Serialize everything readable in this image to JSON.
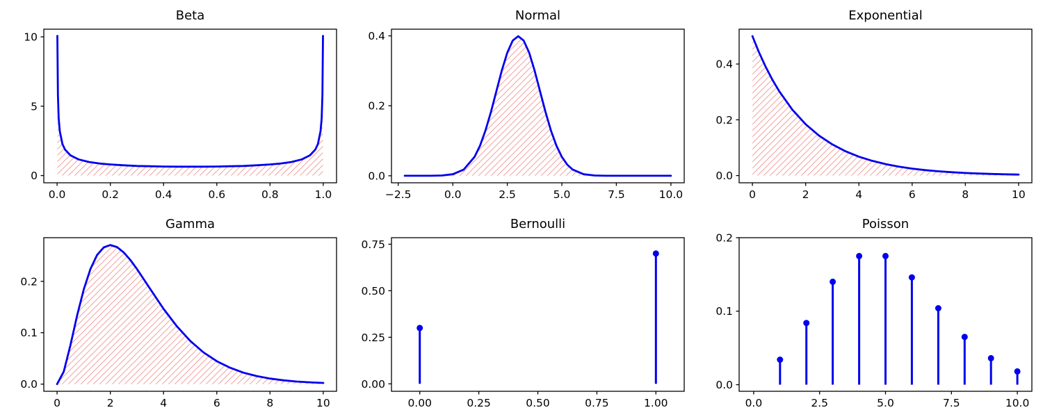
{
  "figure": {
    "rows": 2,
    "cols": 3,
    "background": "#ffffff",
    "colors": {
      "line": "#0000ee",
      "hatch": "#f3a29f",
      "axis": "#000000",
      "text": "#000000"
    }
  },
  "chart_data": [
    {
      "type": "line",
      "title": "Beta",
      "fill": "hatch",
      "xlim": [
        -0.05,
        1.05
      ],
      "ylim": [
        -0.52,
        10.55
      ],
      "xticks": [
        0,
        0.2,
        0.4,
        0.6,
        0.8,
        1.0
      ],
      "xtick_labels": [
        "0.0",
        "0.2",
        "0.4",
        "0.6",
        "0.8",
        "1.0"
      ],
      "yticks": [
        0,
        5,
        10
      ],
      "ytick_labels": [
        "0",
        "5",
        "10"
      ],
      "x": [
        0.001,
        0.003,
        0.006,
        0.01,
        0.02,
        0.03,
        0.05,
        0.08,
        0.12,
        0.16,
        0.2,
        0.25,
        0.3,
        0.35,
        0.4,
        0.45,
        0.5,
        0.55,
        0.6,
        0.65,
        0.7,
        0.75,
        0.8,
        0.84,
        0.88,
        0.92,
        0.95,
        0.97,
        0.98,
        0.99,
        0.994,
        0.997,
        0.999
      ],
      "y": [
        10.07,
        5.82,
        4.12,
        3.2,
        2.27,
        1.87,
        1.46,
        1.17,
        0.98,
        0.87,
        0.8,
        0.74,
        0.69,
        0.67,
        0.65,
        0.64,
        0.64,
        0.64,
        0.65,
        0.67,
        0.69,
        0.74,
        0.8,
        0.87,
        0.98,
        1.17,
        1.46,
        1.87,
        2.27,
        3.2,
        4.12,
        5.82,
        10.07
      ]
    },
    {
      "type": "line",
      "title": "Normal",
      "fill": "hatch",
      "xlim": [
        -2.81,
        10.61
      ],
      "ylim": [
        -0.02,
        0.419
      ],
      "xticks": [
        -2.5,
        0,
        2.5,
        5,
        7.5,
        10
      ],
      "xtick_labels": [
        "−2.5",
        "0.0",
        "2.5",
        "5.0",
        "7.5",
        "10.0"
      ],
      "yticks": [
        0,
        0.2,
        0.4
      ],
      "ytick_labels": [
        "0.0",
        "0.2",
        "0.4"
      ],
      "x": [
        -2.2,
        -1.5,
        -1,
        -0.5,
        0,
        0.5,
        1,
        1.25,
        1.5,
        1.75,
        2,
        2.25,
        2.5,
        2.75,
        3,
        3.25,
        3.5,
        3.75,
        4,
        4.25,
        4.5,
        4.75,
        5,
        5.25,
        5.5,
        6,
        6.5,
        7,
        7.5,
        8,
        9,
        10
      ],
      "y": [
        0,
        0,
        0.0001,
        0.0009,
        0.0044,
        0.0175,
        0.054,
        0.0862,
        0.1295,
        0.1826,
        0.242,
        0.3011,
        0.3521,
        0.3866,
        0.3989,
        0.3866,
        0.3521,
        0.3011,
        0.242,
        0.1826,
        0.1295,
        0.0862,
        0.054,
        0.0317,
        0.0175,
        0.0044,
        0.0009,
        0.0001,
        0,
        0,
        0,
        0
      ]
    },
    {
      "type": "line",
      "title": "Exponential",
      "fill": "hatch",
      "xlim": [
        -0.5,
        10.5
      ],
      "ylim": [
        -0.026,
        0.525
      ],
      "xticks": [
        0,
        2,
        4,
        6,
        8,
        10
      ],
      "xtick_labels": [
        "0",
        "2",
        "4",
        "6",
        "8",
        "10"
      ],
      "yticks": [
        0,
        0.2,
        0.4
      ],
      "ytick_labels": [
        "0.0",
        "0.2",
        "0.4"
      ],
      "x": [
        0,
        0.25,
        0.5,
        0.75,
        1,
        1.5,
        2,
        2.5,
        3,
        3.5,
        4,
        4.5,
        5,
        5.5,
        6,
        6.5,
        7,
        7.5,
        8,
        8.5,
        9,
        9.5,
        10
      ],
      "y": [
        0.5,
        0.4412,
        0.3894,
        0.3437,
        0.3033,
        0.2362,
        0.1839,
        0.1432,
        0.1116,
        0.0869,
        0.0677,
        0.0527,
        0.041,
        0.032,
        0.0249,
        0.0194,
        0.0151,
        0.0118,
        0.0092,
        0.0071,
        0.0056,
        0.0043,
        0.0034
      ]
    },
    {
      "type": "line",
      "title": "Gamma",
      "fill": "hatch",
      "xlim": [
        -0.5,
        10.5
      ],
      "ylim": [
        -0.014,
        0.285
      ],
      "xticks": [
        0,
        2,
        4,
        6,
        8,
        10
      ],
      "xtick_labels": [
        "0",
        "2",
        "4",
        "6",
        "8",
        "10"
      ],
      "yticks": [
        0,
        0.1,
        0.2
      ],
      "ytick_labels": [
        "0.0",
        "0.1",
        "0.2"
      ],
      "x": [
        0,
        0.25,
        0.5,
        0.75,
        1,
        1.25,
        1.5,
        1.75,
        2,
        2.25,
        2.5,
        2.75,
        3,
        3.5,
        4,
        4.5,
        5,
        5.5,
        6,
        6.5,
        7,
        7.5,
        8,
        8.5,
        9,
        9.5,
        10
      ],
      "y": [
        0,
        0.0243,
        0.0758,
        0.1329,
        0.1839,
        0.2238,
        0.251,
        0.2661,
        0.2707,
        0.2668,
        0.2565,
        0.2417,
        0.224,
        0.185,
        0.1465,
        0.1125,
        0.0842,
        0.0618,
        0.0446,
        0.0318,
        0.0223,
        0.0156,
        0.0107,
        0.0074,
        0.005,
        0.0034,
        0.0023
      ]
    },
    {
      "type": "stem",
      "title": "Bernoulli",
      "xlim": [
        -0.12,
        1.12
      ],
      "ylim": [
        -0.04,
        0.785
      ],
      "xticks": [
        0,
        0.25,
        0.5,
        0.75,
        1
      ],
      "xtick_labels": [
        "0.00",
        "0.25",
        "0.50",
        "0.75",
        "1.00"
      ],
      "yticks": [
        0,
        0.25,
        0.5,
        0.75
      ],
      "ytick_labels": [
        "0.00",
        "0.25",
        "0.50",
        "0.75"
      ],
      "x": [
        0,
        1
      ],
      "y": [
        0.3,
        0.7
      ]
    },
    {
      "type": "stem",
      "title": "Poisson",
      "xlim": [
        -0.55,
        10.55
      ],
      "ylim": [
        -0.009,
        0.2
      ],
      "xticks": [
        0,
        2.5,
        5,
        7.5,
        10
      ],
      "xtick_labels": [
        "0.0",
        "2.5",
        "5.0",
        "7.5",
        "10.0"
      ],
      "yticks": [
        0,
        0.1,
        0.2
      ],
      "ytick_labels": [
        "0.0",
        "0.1",
        "0.2"
      ],
      "x": [
        1,
        2,
        3,
        4,
        5,
        6,
        7,
        8,
        9,
        10
      ],
      "y": [
        0.034,
        0.084,
        0.14,
        0.175,
        0.175,
        0.146,
        0.104,
        0.065,
        0.036,
        0.018
      ]
    }
  ]
}
